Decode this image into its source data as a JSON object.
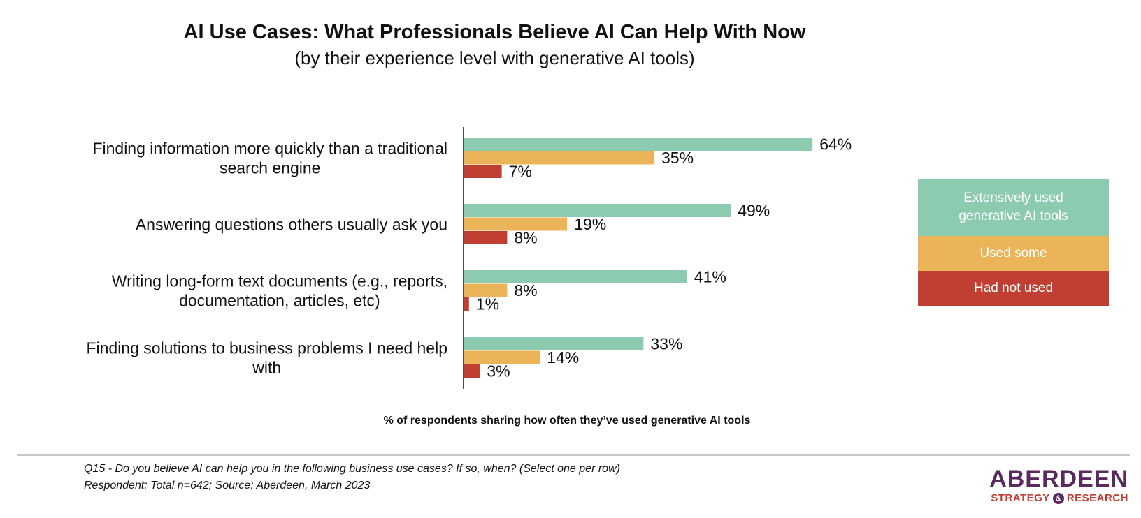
{
  "chart_data": {
    "type": "bar",
    "orientation": "horizontal",
    "title": "AI Use Cases: What Professionals Believe AI Can Help With Now",
    "subtitle": "(by their experience level with generative AI tools)",
    "xlabel": "% of respondents sharing how often they’ve used generative AI tools",
    "categories": [
      [
        "Finding information more quickly than a traditional",
        "search engine"
      ],
      [
        "Answering questions others usually ask you"
      ],
      [
        "Writing long-form text documents (e.g., reports,",
        "documentation, articles, etc)"
      ],
      [
        "Finding solutions to business problems I need help",
        "with"
      ]
    ],
    "series": [
      {
        "name": "Extensively used generative AI tools",
        "name_lines": [
          "Extensively used",
          "generative AI tools"
        ],
        "color": "#8dcbb0",
        "values": [
          64,
          49,
          41,
          33
        ],
        "labels": [
          "64%",
          "49%",
          "41%",
          "33%"
        ]
      },
      {
        "name": "Used some",
        "name_lines": [
          "Used some"
        ],
        "color": "#ecb458",
        "values": [
          35,
          19,
          8,
          14
        ],
        "labels": [
          "35%",
          "19%",
          "8%",
          "14%"
        ]
      },
      {
        "name": "Had not used",
        "name_lines": [
          "Had not used"
        ],
        "color": "#c13f32",
        "values": [
          7,
          8,
          1,
          3
        ],
        "labels": [
          "7%",
          "8%",
          "1%",
          "3%"
        ]
      }
    ],
    "xlim": [
      0,
      100
    ],
    "grid": false,
    "legend_position": "right"
  },
  "footnote": {
    "line1": "Q15 - Do you believe AI can help you in the following business use cases? If so, when? (Select one per row)",
    "line2": "Respondent: Total n=642; Source: Aberdeen, March 2023"
  },
  "logo": {
    "main": "ABERDEEN",
    "sub_left": "STRATEGY",
    "sub_mark": "&",
    "sub_right": "RESEARCH",
    "main_color": "#5a2a5e",
    "sub_color": "#c13f32"
  }
}
